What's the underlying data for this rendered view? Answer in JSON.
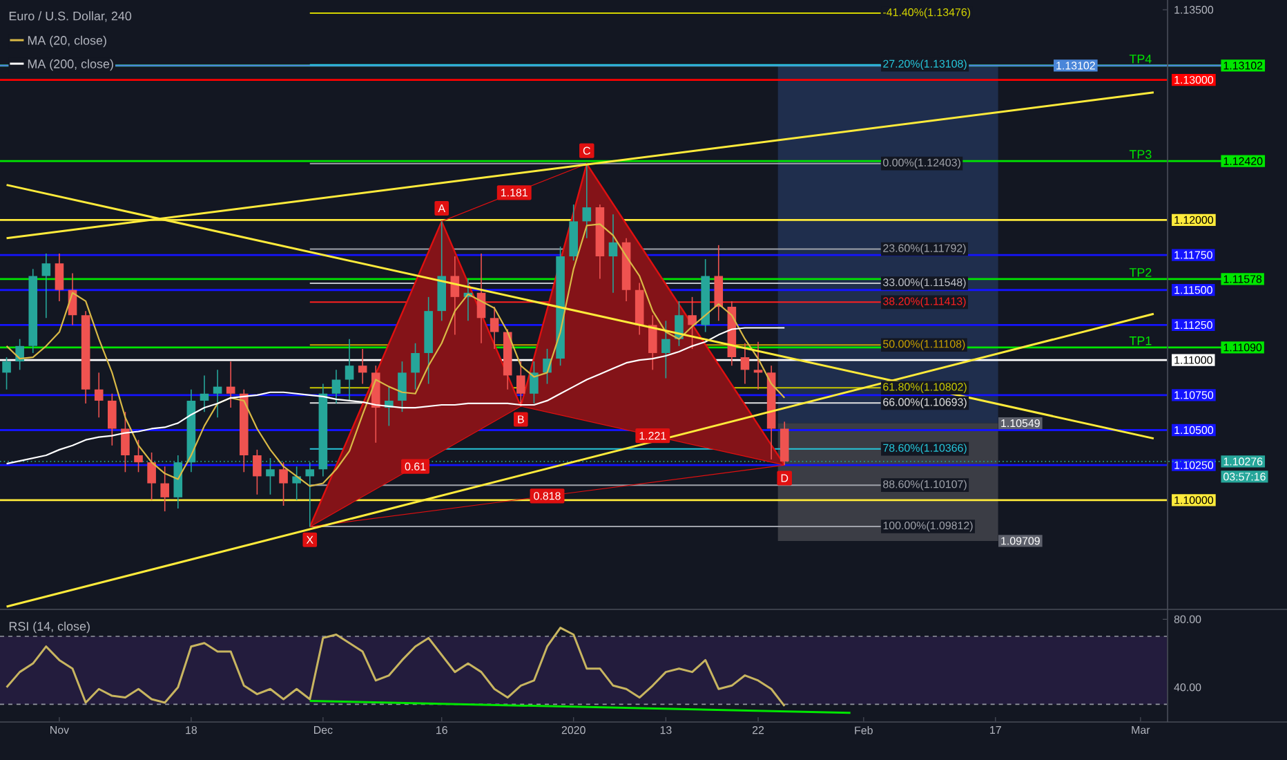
{
  "chart_data": [
    {
      "type": "candlestick",
      "title": "Euro / U.S. Dollar, 240",
      "legend": "top left",
      "tick_labels": "y",
      "categories": [
        null,
        null,
        null,
        null,
        "Nov",
        null,
        null,
        null,
        null,
        null,
        null,
        null,
        null,
        null,
        "18",
        null,
        null,
        null,
        null,
        null,
        null,
        null,
        null,
        null,
        "Dec",
        null,
        null,
        null,
        null,
        null,
        null,
        null,
        null,
        "16",
        null,
        null,
        null,
        null,
        null,
        null,
        null,
        null,
        null,
        "2020",
        null,
        null,
        null,
        null,
        null,
        null,
        "13",
        null,
        null,
        null,
        null,
        null,
        null,
        "22",
        null,
        null,
        null,
        null,
        null,
        null,
        null,
        "Feb",
        null,
        null,
        null,
        null,
        null,
        null,
        null,
        null,
        null,
        "17",
        null,
        null,
        null,
        null,
        null,
        null,
        null,
        null,
        null,
        null,
        "Mar",
        null
      ],
      "ohlc": [
        [
          1.1091,
          1.1102,
          1.1079,
          1.1099
        ],
        [
          1.1099,
          1.1115,
          1.1093,
          1.111
        ],
        [
          1.111,
          1.1165,
          1.1105,
          1.116
        ],
        [
          1.116,
          1.1176,
          1.113,
          1.1169
        ],
        [
          1.1169,
          1.1176,
          1.1142,
          1.115
        ],
        [
          1.115,
          1.1162,
          1.1125,
          1.1132
        ],
        [
          1.1132,
          1.1135,
          1.1069,
          1.1079
        ],
        [
          1.1079,
          1.1091,
          1.1059,
          1.1071
        ],
        [
          1.1071,
          1.1076,
          1.1039,
          1.1051
        ],
        [
          1.1051,
          1.1063,
          1.102,
          1.1032
        ],
        [
          1.1032,
          1.1043,
          1.102,
          1.1027
        ],
        [
          1.1027,
          1.1034,
          1.1,
          1.1012
        ],
        [
          1.1012,
          1.1024,
          1.0992,
          1.1002
        ],
        [
          1.1002,
          1.1032,
          1.0994,
          1.1027
        ],
        [
          1.1027,
          1.1079,
          1.102,
          1.1071
        ],
        [
          1.1071,
          1.1089,
          1.1063,
          1.1076
        ],
        [
          1.1076,
          1.1093,
          1.1059,
          1.1081
        ],
        [
          1.1081,
          1.1099,
          1.1066,
          1.1076
        ],
        [
          1.1076,
          1.1079,
          1.102,
          1.1032
        ],
        [
          1.1032,
          1.1036,
          1.1004,
          1.1017
        ],
        [
          1.1017,
          1.103,
          1.1004,
          1.1022
        ],
        [
          1.1022,
          1.1027,
          1.0996,
          1.1012
        ],
        [
          1.1012,
          1.1024,
          1.1,
          1.1017
        ],
        [
          1.1017,
          1.1027,
          1.0981,
          1.1022
        ],
        [
          1.1022,
          1.1083,
          1.1017,
          1.1076
        ],
        [
          1.1076,
          1.1093,
          1.1069,
          1.1086
        ],
        [
          1.1086,
          1.1115,
          1.1071,
          1.1096
        ],
        [
          1.1096,
          1.1108,
          1.1083,
          1.1091
        ],
        [
          1.1091,
          1.1096,
          1.1041,
          1.1066
        ],
        [
          1.1066,
          1.1081,
          1.1053,
          1.1071
        ],
        [
          1.1071,
          1.1099,
          1.1063,
          1.1091
        ],
        [
          1.1091,
          1.1112,
          1.1079,
          1.1105
        ],
        [
          1.1105,
          1.1145,
          1.1083,
          1.1135
        ],
        [
          1.1135,
          1.1199,
          1.1128,
          1.116
        ],
        [
          1.116,
          1.1174,
          1.1118,
          1.1145
        ],
        [
          1.1145,
          1.1158,
          1.1128,
          1.1148
        ],
        [
          1.1148,
          1.1176,
          1.1112,
          1.113
        ],
        [
          1.113,
          1.1138,
          1.1108,
          1.112
        ],
        [
          1.112,
          1.1122,
          1.1079,
          1.1089
        ],
        [
          1.1089,
          1.1099,
          1.1067,
          1.1076
        ],
        [
          1.1076,
          1.1099,
          1.1069,
          1.1091
        ],
        [
          1.1091,
          1.1108,
          1.1083,
          1.1101
        ],
        [
          1.1101,
          1.1181,
          1.1096,
          1.1174
        ],
        [
          1.1174,
          1.1211,
          1.1171,
          1.1199
        ],
        [
          1.1199,
          1.124,
          1.1187,
          1.1209
        ],
        [
          1.1209,
          1.1211,
          1.1158,
          1.1174
        ],
        [
          1.1174,
          1.1204,
          1.1148,
          1.1184
        ],
        [
          1.1184,
          1.1187,
          1.1142,
          1.115
        ],
        [
          1.115,
          1.1155,
          1.1118,
          1.1125
        ],
        [
          1.1125,
          1.1132,
          1.1093,
          1.1105
        ],
        [
          1.1105,
          1.1128,
          1.1087,
          1.1115
        ],
        [
          1.1115,
          1.1142,
          1.111,
          1.1132
        ],
        [
          1.1132,
          1.1145,
          1.1108,
          1.1125
        ],
        [
          1.1125,
          1.1172,
          1.112,
          1.116
        ],
        [
          1.116,
          1.1182,
          1.1128,
          1.1138
        ],
        [
          1.1138,
          1.1142,
          1.1096,
          1.1102
        ],
        [
          1.1102,
          1.1112,
          1.1083,
          1.1093
        ],
        [
          1.1093,
          1.1113,
          1.1079,
          1.1091
        ],
        [
          1.1091,
          1.1096,
          1.1029,
          1.1051
        ],
        [
          1.1051,
          1.1056,
          1.1025,
          1.10276
        ],
        null,
        null,
        null,
        null,
        null,
        null,
        null,
        null,
        null,
        null,
        null,
        null,
        null,
        null,
        null,
        null,
        null,
        null,
        null,
        null,
        null,
        null,
        null,
        null,
        null,
        null,
        null,
        null
      ],
      "series": [
        {
          "name": "MA (20, close)",
          "type": "line",
          "color": "#d9b946",
          "values": [
            1.111,
            1.1101,
            1.1102,
            1.111,
            1.112,
            1.1148,
            1.1142,
            1.1115,
            1.1091,
            1.1059,
            1.1039,
            1.1027,
            1.1019,
            1.1015,
            1.1032,
            1.1053,
            1.1069,
            1.1073,
            1.1071,
            1.1051,
            1.1036,
            1.1024,
            1.1017,
            1.101,
            1.1012,
            1.1022,
            1.1035,
            1.1061,
            1.1086,
            1.1081,
            1.1077,
            1.1076,
            1.1096,
            1.1112,
            1.1135,
            1.1147,
            1.1142,
            1.1137,
            1.112,
            1.1096,
            1.1088,
            1.1091,
            1.112,
            1.1165,
            1.1196,
            1.1197,
            1.1189,
            1.1174,
            1.116,
            1.1135,
            1.112,
            1.1115,
            1.1124,
            1.1132,
            1.114,
            1.1132,
            1.1115,
            1.1101,
            1.1083,
            1.1073,
            null,
            null,
            null,
            null,
            null,
            null,
            null,
            null,
            null,
            null,
            null,
            null,
            null,
            null,
            null,
            null,
            null,
            null,
            null,
            null,
            null,
            null,
            null,
            null,
            null,
            null,
            null,
            null
          ]
        },
        {
          "name": "MA (200, close)",
          "type": "line",
          "color": "#ffffff",
          "values": [
            1.1026,
            1.1028,
            1.103,
            1.1032,
            1.1036,
            1.1039,
            1.1043,
            1.1045,
            1.1046,
            1.1048,
            1.1049,
            1.1051,
            1.1052,
            1.1055,
            1.1061,
            1.1066,
            1.1069,
            1.1073,
            1.1074,
            1.1075,
            1.1077,
            1.1077,
            1.1076,
            1.1075,
            1.1074,
            1.1072,
            1.1071,
            1.107,
            1.1068,
            1.1067,
            1.1066,
            1.1066,
            1.1067,
            1.1068,
            1.1068,
            1.1069,
            1.1069,
            1.1069,
            1.1069,
            1.1068,
            1.1068,
            1.1071,
            1.1076,
            1.1081,
            1.1086,
            1.109,
            1.1094,
            1.1098,
            1.11,
            1.1101,
            1.1103,
            1.1106,
            1.111,
            1.1113,
            1.1118,
            1.1122,
            1.1123,
            1.1123,
            1.1123,
            1.1123,
            null,
            null,
            null,
            null,
            null,
            null,
            null,
            null,
            null,
            null,
            null,
            null,
            null,
            null,
            null,
            null,
            null,
            null,
            null,
            null,
            null,
            null,
            null,
            null,
            null,
            null,
            null,
            null
          ]
        },
        {
          "type": "line",
          "color": "#ffeb3b",
          "values": [
            1.0924,
            null,
            null,
            null,
            null,
            null,
            null,
            null,
            null,
            null,
            null,
            null,
            null,
            null,
            null,
            null,
            null,
            null,
            null,
            null,
            null,
            null,
            null,
            null,
            null,
            null,
            null,
            null,
            null,
            null,
            null,
            null,
            null,
            null,
            null,
            null,
            null,
            null,
            null,
            null,
            null,
            null,
            null,
            null,
            null,
            null,
            null,
            null,
            null,
            null,
            null,
            null,
            null,
            null,
            null,
            null,
            null,
            null,
            null,
            null,
            null,
            null,
            null,
            null,
            null,
            null,
            null,
            null,
            null,
            null,
            null,
            null,
            null,
            null,
            null,
            null,
            null,
            null,
            null,
            null,
            null,
            null,
            null,
            null,
            null,
            null,
            null,
            1.1133
          ]
        },
        {
          "type": "line",
          "color": "#ffeb3b",
          "values": [
            1.1187,
            null,
            null,
            null,
            null,
            null,
            null,
            null,
            null,
            null,
            null,
            null,
            null,
            null,
            null,
            null,
            null,
            null,
            null,
            null,
            null,
            null,
            null,
            null,
            null,
            null,
            null,
            null,
            null,
            null,
            null,
            null,
            null,
            null,
            null,
            null,
            null,
            null,
            null,
            null,
            null,
            null,
            null,
            null,
            null,
            null,
            null,
            null,
            null,
            null,
            null,
            null,
            null,
            null,
            null,
            null,
            null,
            null,
            null,
            null,
            null,
            null,
            null,
            null,
            null,
            null,
            null,
            null,
            null,
            null,
            null,
            null,
            null,
            null,
            null,
            null,
            null,
            null,
            null,
            null,
            null,
            null,
            null,
            null,
            null,
            null,
            null,
            1.1291
          ]
        },
        {
          "type": "line",
          "color": "#ffeb3b",
          "values": [
            1.1225,
            null,
            null,
            null,
            null,
            null,
            null,
            null,
            null,
            null,
            null,
            null,
            null,
            null,
            null,
            null,
            null,
            null,
            null,
            null,
            null,
            null,
            null,
            null,
            null,
            null,
            null,
            null,
            null,
            null,
            null,
            null,
            null,
            null,
            null,
            null,
            null,
            null,
            null,
            null,
            null,
            null,
            null,
            null,
            null,
            null,
            null,
            null,
            null,
            null,
            null,
            null,
            null,
            null,
            null,
            null,
            null,
            null,
            null,
            null,
            null,
            null,
            null,
            null,
            null,
            null,
            null,
            null,
            null,
            null,
            null,
            null,
            null,
            null,
            null,
            null,
            null,
            null,
            null,
            null,
            null,
            null,
            null,
            null,
            null,
            null,
            null,
            1.1044
          ]
        },
        {
          "type": "line",
          "color": "#e01010",
          "values": [
            null,
            null,
            null,
            null,
            null,
            null,
            null,
            null,
            null,
            null,
            null,
            null,
            null,
            null,
            null,
            null,
            null,
            null,
            null,
            null,
            null,
            null,
            null,
            1.0981,
            null,
            null,
            null,
            null,
            null,
            null,
            null,
            null,
            null,
            1.1199,
            null,
            null,
            null,
            null,
            null,
            1.1067,
            null,
            null,
            null,
            null,
            1.124,
            null,
            null,
            null,
            null,
            null,
            null,
            null,
            null,
            null,
            null,
            null,
            null,
            null,
            null,
            1.1025,
            null,
            null,
            null,
            null,
            null,
            null,
            null,
            null,
            null,
            null,
            null,
            null,
            null,
            null,
            null,
            null,
            null,
            null,
            null,
            null,
            null,
            null,
            null,
            null,
            null,
            null,
            null,
            null
          ],
          "value_labels": [
            null,
            null,
            null,
            null,
            null,
            null,
            null,
            null,
            null,
            null,
            null,
            null,
            null,
            null,
            null,
            null,
            null,
            null,
            null,
            null,
            null,
            null,
            null,
            "X",
            null,
            null,
            null,
            null,
            null,
            null,
            null,
            null,
            null,
            "A",
            null,
            null,
            null,
            null,
            null,
            "B",
            null,
            null,
            null,
            null,
            "C",
            null,
            null,
            null,
            null,
            null,
            null,
            null,
            null,
            null,
            null,
            null,
            null,
            null,
            null,
            "D",
            null,
            null,
            null,
            null,
            null,
            null,
            null,
            null,
            null,
            null,
            null,
            null,
            null,
            null,
            null,
            null,
            null,
            null,
            null,
            null,
            null,
            null,
            null,
            null,
            null,
            null,
            null,
            null
          ]
        }
      ],
      "ylim": [
        1.0923,
        1.1357
      ],
      "yticks": [
        {
          "value": 1.135,
          "label": "1.13500"
        },
        {
          "value": 1.13,
          "label": "1.13000"
        },
        {
          "value": 1.12,
          "label": "1.12000"
        },
        {
          "value": 1.1175,
          "label": "1.11750"
        },
        {
          "value": 1.115,
          "label": "1.11500"
        },
        {
          "value": 1.1125,
          "label": "1.11250"
        },
        {
          "value": 1.11,
          "label": "1.11000"
        },
        {
          "value": 1.1075,
          "label": "1.10750"
        },
        {
          "value": 1.105,
          "label": "1.10500"
        },
        {
          "value": 1.1025,
          "label": "1.10250"
        },
        {
          "value": 1.1,
          "label": "1.10000"
        }
      ],
      "bands": [
        {
          "axis": "y",
          "from": 1.10549,
          "to": 1.13108,
          "color": "#1f2e4d",
          "label": "1.10549"
        },
        {
          "axis": "y",
          "from": 1.09709,
          "to": 1.10549,
          "color": "#3b3d45",
          "label": "1.09709"
        }
      ],
      "ref_lines": [
        {
          "axis": "y",
          "value": 1.13,
          "color": "#ff0000"
        },
        {
          "axis": "y",
          "value": 1.12,
          "color": "#ffeb3b"
        },
        {
          "axis": "y",
          "value": 1.1175,
          "color": "#1414ff"
        },
        {
          "axis": "y",
          "value": 1.115,
          "color": "#1414ff"
        },
        {
          "axis": "y",
          "value": 1.1125,
          "color": "#1414ff"
        },
        {
          "axis": "y",
          "value": 1.11,
          "color": "#ffffff"
        },
        {
          "axis": "y",
          "value": 1.1075,
          "color": "#1414ff"
        },
        {
          "axis": "y",
          "value": 1.105,
          "color": "#1414ff"
        },
        {
          "axis": "y",
          "value": 1.1025,
          "color": "#1414ff"
        },
        {
          "axis": "y",
          "value": 1.1,
          "color": "#ffeb3b"
        },
        {
          "axis": "y",
          "value": 1.13102,
          "label": "1.13102",
          "color": "#00e600",
          "line_style": "solid"
        },
        {
          "axis": "y",
          "value": 1.13102,
          "label": "1.13102",
          "color": "#4a86d9",
          "line_style": "solid"
        },
        {
          "axis": "y",
          "value": 1.1242,
          "label": "1.12420",
          "color": "#00e600",
          "line_style": "solid"
        },
        {
          "axis": "y",
          "value": 1.11578,
          "label": "1.11578",
          "color": "#00e600",
          "line_style": "solid"
        },
        {
          "axis": "y",
          "value": 1.1109,
          "label": "1.11090",
          "color": "#00e600",
          "line_style": "solid"
        },
        {
          "axis": "y",
          "value": 1.10276,
          "label": "1.10276",
          "color": "#26a69a",
          "line_style": "dotted"
        },
        {
          "axis": "y",
          "value": 1.13476,
          "label": "-41.40%(1.13476)",
          "color": "#d4d400"
        },
        {
          "axis": "y",
          "value": 1.13108,
          "label": "27.20%(1.13108)",
          "color": "#26c6da"
        },
        {
          "axis": "y",
          "value": 1.12403,
          "label": "0.00%(1.12403)",
          "color": "#a0a3ab"
        },
        {
          "axis": "y",
          "value": 1.11792,
          "label": "23.60%(1.11792)",
          "color": "#a0a3ab"
        },
        {
          "axis": "y",
          "value": 1.11548,
          "label": "33.00%(1.11548)",
          "color": "#c0c3cb"
        },
        {
          "axis": "y",
          "value": 1.11413,
          "label": "38.20%(1.11413)",
          "color": "#ff2020"
        },
        {
          "axis": "y",
          "value": 1.11108,
          "label": "50.00%(1.11108)",
          "color": "#c8a000"
        },
        {
          "axis": "y",
          "value": 1.10802,
          "label": "61.80%(1.10802)",
          "color": "#c8c800"
        },
        {
          "axis": "y",
          "value": 1.10693,
          "label": "66.00%(1.10693)",
          "color": "#e0e0e0"
        },
        {
          "axis": "y",
          "value": 1.10366,
          "label": "78.60%(1.10366)",
          "color": "#26c6da"
        },
        {
          "axis": "y",
          "value": 1.10107,
          "label": "88.60%(1.10107)",
          "color": "#a0a3ab"
        },
        {
          "axis": "y",
          "value": 1.09812,
          "label": "100.00%(1.09812)",
          "color": "#a0a3ab"
        }
      ],
      "annotations": [
        "0.61",
        "1.181",
        "1.221",
        "0.818",
        "03:57:16",
        {
          "text": "TP4",
          "x": "Mar",
          "y": 1.13102
        },
        {
          "text": "TP3",
          "x": "Mar",
          "y": 1.1242
        },
        {
          "text": "TP2",
          "x": "Mar",
          "y": 1.11578
        },
        {
          "text": "TP1",
          "x": "Mar",
          "y": 1.1109
        }
      ]
    },
    {
      "type": "line",
      "title": "RSI (14, close)",
      "categories": [
        null,
        null,
        null,
        null,
        "Nov",
        null,
        null,
        null,
        null,
        null,
        null,
        null,
        null,
        null,
        "18",
        null,
        null,
        null,
        null,
        null,
        null,
        null,
        null,
        null,
        "Dec",
        null,
        null,
        null,
        null,
        null,
        null,
        null,
        null,
        "16",
        null,
        null,
        null,
        null,
        null,
        null,
        null,
        null,
        null,
        "2020",
        null,
        null,
        null,
        null,
        null,
        null,
        "13",
        null,
        null,
        null,
        null,
        null,
        null,
        "22",
        null,
        null,
        null,
        null,
        null,
        null,
        null,
        "Feb",
        null,
        null,
        null,
        null,
        null,
        null,
        null,
        null,
        null,
        "17",
        null,
        null,
        null,
        null,
        null,
        null,
        null,
        null,
        null,
        null,
        "Mar",
        null
      ],
      "series": [
        {
          "color": "#c8b560",
          "values": [
            40,
            49,
            54,
            64,
            56,
            51,
            31,
            39,
            35,
            34,
            39,
            33,
            31,
            40,
            64,
            66,
            61,
            61,
            41,
            36,
            39,
            33,
            39,
            33,
            69,
            71,
            66,
            61,
            44,
            47,
            56,
            64,
            69,
            59,
            49,
            54,
            49,
            39,
            34,
            41,
            44,
            64,
            75,
            71,
            51,
            51,
            41,
            39,
            34,
            41,
            49,
            51,
            49,
            56,
            39,
            41,
            47,
            44,
            39,
            29,
            null,
            null,
            null,
            null,
            null,
            null,
            null,
            null,
            null,
            null,
            null,
            null,
            null,
            null,
            null,
            null,
            null,
            null,
            null,
            null,
            null,
            null,
            null,
            null,
            null,
            null,
            null,
            null
          ]
        },
        {
          "color": "#00e600",
          "values": [
            null,
            null,
            null,
            null,
            null,
            null,
            null,
            null,
            null,
            null,
            null,
            null,
            null,
            null,
            null,
            null,
            null,
            null,
            null,
            null,
            null,
            null,
            null,
            32,
            null,
            null,
            null,
            null,
            null,
            null,
            null,
            null,
            null,
            null,
            null,
            null,
            null,
            null,
            null,
            null,
            null,
            null,
            null,
            null,
            null,
            null,
            null,
            null,
            null,
            null,
            null,
            null,
            null,
            null,
            null,
            null,
            null,
            null,
            null,
            null,
            null,
            null,
            null,
            null,
            25,
            null,
            null,
            null,
            null,
            null,
            null,
            null,
            null,
            null,
            null,
            null,
            null,
            null,
            null,
            null,
            null,
            null,
            null,
            null,
            null,
            null,
            null,
            null
          ]
        }
      ],
      "ylim": [
        20,
        85
      ],
      "yticks": [
        {
          "value": 40,
          "label": "40.00"
        },
        {
          "value": 80,
          "label": "80.00"
        }
      ],
      "ref_lines": [
        {
          "axis": "y",
          "value": 70,
          "color": "#9598a1",
          "line_style": "dashed"
        },
        {
          "axis": "y",
          "value": 30,
          "color": "#9598a1",
          "line_style": "dashed"
        }
      ],
      "bands": [
        {
          "axis": "y",
          "from": 30,
          "to": 70,
          "color": "#231c3d"
        }
      ]
    }
  ]
}
